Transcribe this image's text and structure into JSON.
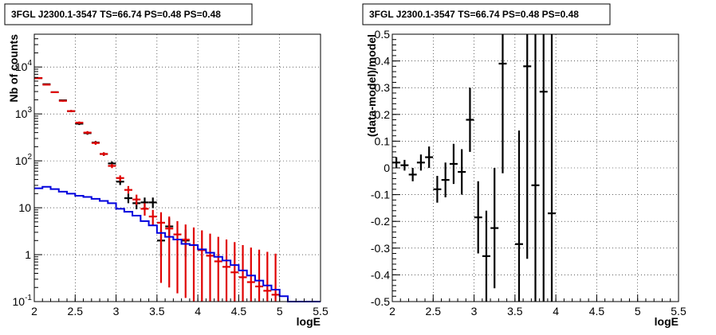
{
  "chart_data": [
    {
      "type": "scatter",
      "title": "3FGL J2300.1-3547 TS=66.74 PS=0.48 PS=0.48",
      "xlabel": "logE",
      "ylabel": "Nb of counts",
      "xlim": [
        2,
        5.5
      ],
      "ylim": [
        0.1,
        50000
      ],
      "yscale": "log",
      "grid": true,
      "x_ticks": [
        "2",
        "2.5",
        "3",
        "3.5",
        "4",
        "4.5",
        "5",
        "5.5"
      ],
      "y_ticks": [
        {
          "value": 0.1,
          "base": "10",
          "exp": "-1"
        },
        {
          "value": 1,
          "base": "1",
          "exp": ""
        },
        {
          "value": 10,
          "base": "10",
          "exp": ""
        },
        {
          "value": 100,
          "base": "10",
          "exp": "2"
        },
        {
          "value": 1000,
          "base": "10",
          "exp": "3"
        },
        {
          "value": 10000,
          "base": "10",
          "exp": "4"
        }
      ],
      "series": [
        {
          "color": "#000000",
          "style": "errorbar",
          "points": [
            {
              "x": 2.05,
              "y": 5800,
              "lo": 5650,
              "hi": 5950
            },
            {
              "x": 2.15,
              "y": 4300,
              "lo": 4170,
              "hi": 4430
            },
            {
              "x": 2.25,
              "y": 2900,
              "lo": 2800,
              "hi": 3000
            },
            {
              "x": 2.35,
              "y": 1950,
              "lo": 1870,
              "hi": 2030
            },
            {
              "x": 2.45,
              "y": 1150,
              "lo": 1090,
              "hi": 1210
            },
            {
              "x": 2.55,
              "y": 620,
              "lo": 580,
              "hi": 660
            },
            {
              "x": 2.65,
              "y": 390,
              "lo": 360,
              "hi": 420
            },
            {
              "x": 2.75,
              "y": 245,
              "lo": 225,
              "hi": 265
            },
            {
              "x": 2.85,
              "y": 140,
              "lo": 128,
              "hi": 152
            },
            {
              "x": 2.95,
              "y": 88,
              "lo": 79,
              "hi": 97
            },
            {
              "x": 3.05,
              "y": 36,
              "lo": 30.5,
              "hi": 42
            },
            {
              "x": 3.15,
              "y": 16,
              "lo": 12.5,
              "hi": 20
            },
            {
              "x": 3.25,
              "y": 12.5,
              "lo": 9.3,
              "hi": 16
            },
            {
              "x": 3.35,
              "y": 13,
              "lo": 9.8,
              "hi": 16.5
            },
            {
              "x": 3.45,
              "y": 13,
              "lo": 9.8,
              "hi": 16.5
            },
            {
              "x": 3.55,
              "y": 2,
              "lo": 0.9,
              "hi": 3.4
            },
            {
              "x": 3.65,
              "y": 4,
              "lo": 2.3,
              "hi": 6
            },
            {
              "x": 3.85,
              "y": 2,
              "lo": 0.9,
              "hi": 3.4
            }
          ]
        },
        {
          "color": "#e00000",
          "style": "errorbar",
          "points": [
            {
              "x": 2.05,
              "y": 5800,
              "lo": 5650,
              "hi": 5950
            },
            {
              "x": 2.15,
              "y": 4200,
              "lo": 4070,
              "hi": 4330
            },
            {
              "x": 2.25,
              "y": 2900,
              "lo": 2800,
              "hi": 3000
            },
            {
              "x": 2.35,
              "y": 1900,
              "lo": 1820,
              "hi": 1980
            },
            {
              "x": 2.45,
              "y": 1150,
              "lo": 1090,
              "hi": 1210
            },
            {
              "x": 2.55,
              "y": 650,
              "lo": 610,
              "hi": 690
            },
            {
              "x": 2.65,
              "y": 400,
              "lo": 370,
              "hi": 430
            },
            {
              "x": 2.75,
              "y": 240,
              "lo": 220,
              "hi": 260
            },
            {
              "x": 2.85,
              "y": 140,
              "lo": 128,
              "hi": 152
            },
            {
              "x": 2.95,
              "y": 78,
              "lo": 70,
              "hi": 86
            },
            {
              "x": 3.05,
              "y": 43,
              "lo": 37,
              "hi": 49
            },
            {
              "x": 3.15,
              "y": 24,
              "lo": 20,
              "hi": 29
            },
            {
              "x": 3.25,
              "y": 15,
              "lo": 11.5,
              "hi": 19
            },
            {
              "x": 3.35,
              "y": 9.5,
              "lo": 6.8,
              "hi": 12.5
            },
            {
              "x": 3.45,
              "y": 6.5,
              "lo": 4.3,
              "hi": 9
            },
            {
              "x": 3.55,
              "y": 4.8,
              "lo": 0.25,
              "hi": 8
            },
            {
              "x": 3.65,
              "y": 3.6,
              "lo": 0.2,
              "hi": 6.5
            },
            {
              "x": 3.75,
              "y": 2.7,
              "lo": 0.15,
              "hi": 5.2
            },
            {
              "x": 3.85,
              "y": 2.1,
              "lo": 0.12,
              "hi": 4.4
            },
            {
              "x": 3.95,
              "y": 1.6,
              "lo": 0.1,
              "hi": 3.8
            },
            {
              "x": 4.05,
              "y": 1.25,
              "lo": 0.1,
              "hi": 3.3
            },
            {
              "x": 4.15,
              "y": 0.95,
              "lo": 0.1,
              "hi": 2.8
            },
            {
              "x": 4.25,
              "y": 0.72,
              "lo": 0.1,
              "hi": 2.4
            },
            {
              "x": 4.35,
              "y": 0.55,
              "lo": 0.1,
              "hi": 2.1
            },
            {
              "x": 4.45,
              "y": 0.42,
              "lo": 0.1,
              "hi": 1.85
            },
            {
              "x": 4.55,
              "y": 0.33,
              "lo": 0.1,
              "hi": 1.6
            },
            {
              "x": 4.65,
              "y": 0.26,
              "lo": 0.1,
              "hi": 1.42
            },
            {
              "x": 4.75,
              "y": 0.21,
              "lo": 0.1,
              "hi": 1.28
            },
            {
              "x": 4.85,
              "y": 0.17,
              "lo": 0.1,
              "hi": 1.15
            },
            {
              "x": 4.95,
              "y": 0.14,
              "lo": 0.1,
              "hi": 1.05
            }
          ]
        },
        {
          "color": "#0000dd",
          "style": "step",
          "bin_width": 0.1,
          "bin_starts": [
            2.0,
            2.1,
            2.2,
            2.3,
            2.4,
            2.5,
            2.6,
            2.7,
            2.8,
            2.9,
            3.0,
            3.1,
            3.2,
            3.3,
            3.4,
            3.5,
            3.6,
            3.7,
            3.8,
            3.9,
            4.0,
            4.1,
            4.2,
            4.3,
            4.4,
            4.5,
            4.6,
            4.7,
            4.8,
            4.9,
            5.0,
            5.1,
            5.2,
            5.3,
            5.4
          ],
          "values": [
            26,
            28,
            25,
            22,
            20,
            18,
            17,
            15.5,
            14,
            12.5,
            9.5,
            8.2,
            6.8,
            5.2,
            4.2,
            2.9,
            2.4,
            2.1,
            1.7,
            1.6,
            1.3,
            1.1,
            0.9,
            0.75,
            0.6,
            0.46,
            0.36,
            0.28,
            0.22,
            0.18,
            0.13,
            0.1,
            0.1,
            0.1,
            0.1
          ]
        }
      ]
    },
    {
      "type": "scatter",
      "title": "3FGL J2300.1-3547 TS=66.74 PS=0.48 PS=0.48",
      "xlabel": "logE",
      "ylabel": "(data-model)/model",
      "xlim": [
        2,
        5.5
      ],
      "ylim": [
        -0.5,
        0.5
      ],
      "grid": true,
      "x_ticks": [
        "2",
        "2.5",
        "3",
        "3.5",
        "4",
        "4.5",
        "5",
        "5.5"
      ],
      "y_ticks": [
        "-0.5",
        "-0.4",
        "-0.3",
        "-0.2",
        "-0.1",
        "0",
        "0.1",
        "0.2",
        "0.3",
        "0.4",
        "0.5"
      ],
      "series": [
        {
          "color": "#000000",
          "style": "errorbar",
          "points": [
            {
              "x": 2.05,
              "y": 0.02,
              "lo": 0.0,
              "hi": 0.04
            },
            {
              "x": 2.15,
              "y": 0.01,
              "lo": -0.01,
              "hi": 0.03
            },
            {
              "x": 2.25,
              "y": -0.025,
              "lo": -0.05,
              "hi": 0.0
            },
            {
              "x": 2.35,
              "y": 0.02,
              "lo": -0.01,
              "hi": 0.05
            },
            {
              "x": 2.45,
              "y": 0.04,
              "lo": 0.0,
              "hi": 0.08
            },
            {
              "x": 2.55,
              "y": -0.08,
              "lo": -0.13,
              "hi": -0.03
            },
            {
              "x": 2.65,
              "y": -0.045,
              "lo": -0.11,
              "hi": 0.02
            },
            {
              "x": 2.75,
              "y": 0.015,
              "lo": -0.06,
              "hi": 0.09
            },
            {
              "x": 2.85,
              "y": -0.015,
              "lo": -0.1,
              "hi": 0.07
            },
            {
              "x": 2.95,
              "y": 0.18,
              "lo": 0.06,
              "hi": 0.3
            },
            {
              "x": 3.05,
              "y": -0.185,
              "lo": -0.32,
              "hi": -0.05
            },
            {
              "x": 3.15,
              "y": -0.33,
              "lo": -0.5,
              "hi": -0.16
            },
            {
              "x": 3.25,
              "y": -0.225,
              "lo": -0.45,
              "hi": 0.0
            },
            {
              "x": 3.35,
              "y": 0.39,
              "lo": -0.02,
              "hi": 0.5
            },
            {
              "x": 3.55,
              "y": -0.285,
              "lo": -0.5,
              "hi": 0.14
            },
            {
              "x": 3.65,
              "y": 0.38,
              "lo": -0.34,
              "hi": 0.5
            },
            {
              "x": 3.75,
              "y": -0.065,
              "lo": -0.5,
              "hi": 0.5
            },
            {
              "x": 3.85,
              "y": 0.285,
              "lo": -0.5,
              "hi": 0.5
            },
            {
              "x": 3.95,
              "y": -0.17,
              "lo": -0.5,
              "hi": 0.5
            }
          ]
        }
      ]
    }
  ]
}
